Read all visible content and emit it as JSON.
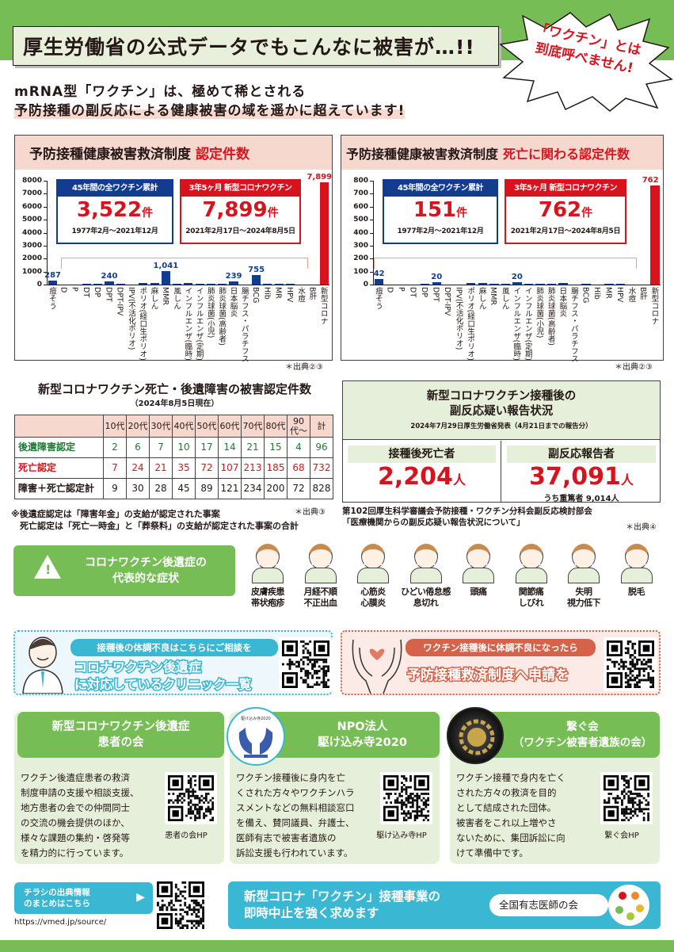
{
  "header": {
    "title": "厚生労働省の公式データでもこんなに被害が…!!",
    "burst": "「ワクチン」とは\n到底呼べません!",
    "lead_line1": "mRNA型「ワクチン」は、極めて稀とされる",
    "lead_line2": "予防接種の副反応による健康被害の域を遥かに超えています!"
  },
  "panels": [
    {
      "title": "予防接種健康被害救済制度",
      "title_red": "認定件数",
      "callout_blue": {
        "head": "45年間の全ワクチン累計",
        "value": "3,522",
        "unit": "件",
        "period": "1977年2月〜2021年12月"
      },
      "callout_red": {
        "head": "3年5ヶ月 新型コロナワクチン",
        "value": "7,899",
        "unit": "件",
        "period": "2021年2月17日〜2024年8月5日"
      },
      "source": "＊出典②③"
    },
    {
      "title": "予防接種健康被害救済制度",
      "title_red": "死亡に関わる認定件数",
      "callout_blue": {
        "head": "45年間の全ワクチン累計",
        "value": "151",
        "unit": "件",
        "period": "1977年2月〜2021年12月"
      },
      "callout_red": {
        "head": "3年5ヶ月 新型コロナワクチン",
        "value": "762",
        "unit": "件",
        "period": "2021年2月17日〜2024年8月5日"
      },
      "source": "＊出典②③"
    }
  ],
  "chart_data": [
    {
      "type": "bar",
      "title": "予防接種健康被害救済制度 認定件数",
      "categories": [
        "痘そう",
        "D",
        "P",
        "DT",
        "DP",
        "DPT",
        "DPT-IPV",
        "IPV(不活化ポリオ)",
        "ポリオ(経口生ポリオ)",
        "麻しん",
        "MMR",
        "風しん",
        "インフルエンザ(臨時)",
        "インフルエンザ(定期)",
        "肺炎球菌(小児)",
        "肺炎球菌(高齢者)",
        "日本脳炎",
        "腸チフス・パラチフス",
        "BCG",
        "Hib",
        "MR",
        "HPV",
        "水痘",
        "B肝",
        "新型コロナ"
      ],
      "values": [
        287,
        0,
        0,
        40,
        50,
        240,
        30,
        0,
        150,
        150,
        1041,
        50,
        100,
        40,
        50,
        60,
        239,
        0,
        755,
        30,
        60,
        50,
        0,
        0,
        7899
      ],
      "labeled": {
        "0": "287",
        "5": "240",
        "10": "1,041",
        "16": "239",
        "18": "755",
        "24": "7,899"
      },
      "yticks": [
        "0",
        "1000",
        "2000",
        "3000",
        "4000",
        "5000",
        "6000",
        "7000",
        "8000"
      ],
      "ylim": [
        0,
        8000
      ],
      "highlight_index": 24
    },
    {
      "type": "bar",
      "title": "予防接種健康被害救済制度 死亡に関わる認定件数",
      "categories": [
        "痘そう",
        "D",
        "P",
        "DT",
        "DP",
        "DPT",
        "DPT-IPV",
        "IPV(不活化ポリオ)",
        "ポリオ(経口生ポリオ)",
        "麻しん",
        "MMR",
        "風しん",
        "インフルエンザ(臨時)",
        "インフルエンザ(定期)",
        "肺炎球菌(小児)",
        "肺炎球菌(高齢者)",
        "日本脳炎",
        "腸チフス・パラチフス",
        "BCG",
        "Hib",
        "MR",
        "HPV",
        "水痘",
        "B肝",
        "新型コロナ"
      ],
      "values": [
        42,
        0,
        0,
        0,
        5,
        20,
        0,
        0,
        10,
        10,
        8,
        8,
        20,
        8,
        2,
        2,
        10,
        0,
        2,
        0,
        2,
        2,
        0,
        0,
        762
      ],
      "labeled": {
        "0": "42",
        "5": "20",
        "12": "20",
        "24": "762"
      },
      "yticks": [
        "0",
        "100",
        "200",
        "300",
        "400",
        "500",
        "600",
        "700",
        "800"
      ],
      "ylim": [
        0,
        800
      ],
      "highlight_index": 24
    }
  ],
  "table": {
    "title": "新型コロナワクチン死亡・後遺障害の被害認定件数",
    "subtitle": "（2024年8月5日現在）",
    "columns": [
      "10代",
      "20代",
      "30代",
      "40代",
      "50代",
      "60代",
      "70代",
      "80代",
      "90代〜",
      "計"
    ],
    "rows": [
      {
        "label": "後遺障害認定",
        "cls": "g",
        "values": [
          "2",
          "6",
          "7",
          "10",
          "17",
          "14",
          "21",
          "15",
          "4",
          "96"
        ]
      },
      {
        "label": "死亡認定",
        "cls": "r",
        "values": [
          "7",
          "24",
          "21",
          "35",
          "72",
          "107",
          "213",
          "185",
          "68",
          "732"
        ]
      },
      {
        "label": "障害＋死亡認定計",
        "cls": "",
        "values": [
          "9",
          "30",
          "28",
          "45",
          "89",
          "121",
          "234",
          "200",
          "72",
          "828"
        ]
      }
    ],
    "note": "※後遺症認定は「障害年金」の支給が認定された事案\n　死亡認定は「死亡一時金」と「葬祭料」の支給が認定された事案の合計",
    "source": "＊出典③"
  },
  "report": {
    "title": "新型コロナワクチン接種後の\n副反応疑い報告状況",
    "subtitle": "2024年7月29日厚生労働省発表（4月21日までの報告分）",
    "deaths_label": "接種後死亡者",
    "deaths_value": "2,204",
    "unit": "人",
    "reports_label": "副反応報告者",
    "reports_value": "37,091",
    "serious": "うち重篤者 9,014人",
    "note": "第102回厚生科学審議会予防接種・ワクチン分科会副反応検討部会\n「医療機関からの副反応疑い報告状況について」",
    "source": "＊出典④"
  },
  "symptoms": {
    "title": "コロナワクチン後遺症の\n代表的な症状",
    "items": [
      "皮膚疾患\n帯状疱疹",
      "月経不順\n不正出血",
      "心筋炎\n心膜炎",
      "ひどい倦怠感\n息切れ",
      "頭痛",
      "関節痛\nしびれ",
      "失明\n視力低下",
      "脱毛"
    ]
  },
  "consult": {
    "left_pill": "接種後の体調不良はこちらにご相談を",
    "left_big": "コロナワクチン後遺症\nに対応しているクリニック一覧",
    "right_pill": "ワクチン接種後に体調不良になったら",
    "right_big": "予防接種救済制度へ申請を"
  },
  "cards": [
    {
      "title": "新型コロナワクチン後遺症\n患者の会",
      "body": "ワクチン後遺症患者の救済\n制度申請の支援や相談支援、\n地方患者の会での仲間同士\nの交流の機会提供のほか、\n様々な課題の集約・啓発等\nを精力的に行っています。",
      "qr_caption": "患者の会HP"
    },
    {
      "title": "NPO法人\n駆け込み寺2020",
      "body": "ワクチン接種後に身内を亡\nくされた方々やワクチンハラ\nスメントなどの無料相談窓口\nを備え、賛同議員、弁護士、\n医師有志で被害者遺族の\n訴訟支援も行われています。",
      "qr_caption": "駆け込み寺HP",
      "logo_text": "特定非営利活動法人 駆け込み寺2020"
    },
    {
      "title": "繋ぐ会\n（ワクチン被害者遺族の会）",
      "body": "ワクチン接種で身内を亡く\nされた方々の救済を目的\nとして結成された団体。\n被害者をこれ以上増やさ\nないために、集団訴訟に向\nけて準備中です。",
      "qr_caption": "繋ぐ会HP",
      "logo_text": "繋"
    }
  ],
  "footer": {
    "source_button": "チラシの出典情報\nのまとめはこちら",
    "source_url": "https://vmed.jp/source/",
    "demand": "新型コロナ「ワクチン」接種事業の\n即時中止を強く求めます",
    "org": "全国有志医師の会"
  },
  "colors": {
    "green": "#77bd55",
    "navy": "#123d8e",
    "red": "#d7141e",
    "pink": "#f7d8cf",
    "teal": "#3ab7d2",
    "coral": "#d4634a"
  }
}
